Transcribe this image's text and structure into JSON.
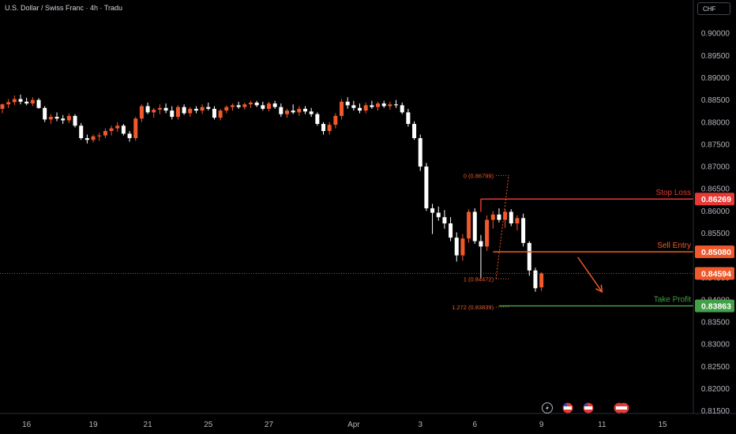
{
  "window": {
    "title": "U.S. Dollar / Swiss Franc · 4h · Tradu",
    "currency_button": "CHF"
  },
  "colors": {
    "up": "#f0592b",
    "down": "#ffffff",
    "stop": "#e53935",
    "entry": "#f0592b",
    "target": "#43a047",
    "fib": "#f0592b",
    "background": "#000000"
  },
  "chart_data": {
    "type": "candlestick",
    "symbol": "USDCHF",
    "interval": "4h",
    "ylim": [
      0.8144,
      0.9075
    ],
    "y_ticks": [
      "0.90000",
      "0.89500",
      "0.89000",
      "0.88500",
      "0.88000",
      "0.87500",
      "0.87000",
      "0.86500",
      "0.86000",
      "0.85500",
      "0.85000",
      "0.84500",
      "0.84000",
      "0.83500",
      "0.83000",
      "0.82500",
      "0.82000",
      "0.81500"
    ],
    "x_ticks": [
      {
        "label": "16",
        "bar": 4
      },
      {
        "label": "19",
        "bar": 15
      },
      {
        "label": "21",
        "bar": 24
      },
      {
        "label": "25",
        "bar": 34
      },
      {
        "label": "27",
        "bar": 44
      },
      {
        "label": "Apr",
        "bar": 58
      },
      {
        "label": "3",
        "bar": 69
      },
      {
        "label": "6",
        "bar": 78
      },
      {
        "label": "9",
        "bar": 89
      },
      {
        "label": "11",
        "bar": 99
      },
      {
        "label": "15",
        "bar": 109
      }
    ],
    "candles": [
      {
        "o": 0.883,
        "h": 0.8842,
        "l": 0.882,
        "c": 0.884
      },
      {
        "o": 0.884,
        "h": 0.8852,
        "l": 0.8832,
        "c": 0.8845
      },
      {
        "o": 0.8845,
        "h": 0.886,
        "l": 0.8838,
        "c": 0.8852
      },
      {
        "o": 0.8852,
        "h": 0.8862,
        "l": 0.884,
        "c": 0.8846
      },
      {
        "o": 0.8846,
        "h": 0.8855,
        "l": 0.8838,
        "c": 0.8842
      },
      {
        "o": 0.8842,
        "h": 0.8856,
        "l": 0.8836,
        "c": 0.885
      },
      {
        "o": 0.885,
        "h": 0.8854,
        "l": 0.883,
        "c": 0.8832
      },
      {
        "o": 0.8832,
        "h": 0.8836,
        "l": 0.88,
        "c": 0.8806
      },
      {
        "o": 0.8806,
        "h": 0.8818,
        "l": 0.8796,
        "c": 0.8812
      },
      {
        "o": 0.8812,
        "h": 0.8822,
        "l": 0.8802,
        "c": 0.8808
      },
      {
        "o": 0.8808,
        "h": 0.8816,
        "l": 0.8796,
        "c": 0.8804
      },
      {
        "o": 0.8804,
        "h": 0.882,
        "l": 0.8798,
        "c": 0.8814
      },
      {
        "o": 0.8814,
        "h": 0.8818,
        "l": 0.8788,
        "c": 0.8792
      },
      {
        "o": 0.8792,
        "h": 0.8798,
        "l": 0.876,
        "c": 0.8764
      },
      {
        "o": 0.8764,
        "h": 0.8772,
        "l": 0.8752,
        "c": 0.876
      },
      {
        "o": 0.876,
        "h": 0.8772,
        "l": 0.8754,
        "c": 0.8768
      },
      {
        "o": 0.8768,
        "h": 0.8776,
        "l": 0.8758,
        "c": 0.877
      },
      {
        "o": 0.877,
        "h": 0.8786,
        "l": 0.8764,
        "c": 0.878
      },
      {
        "o": 0.878,
        "h": 0.8792,
        "l": 0.877,
        "c": 0.8786
      },
      {
        "o": 0.8786,
        "h": 0.88,
        "l": 0.8778,
        "c": 0.8792
      },
      {
        "o": 0.8792,
        "h": 0.8796,
        "l": 0.877,
        "c": 0.8774
      },
      {
        "o": 0.8774,
        "h": 0.878,
        "l": 0.8756,
        "c": 0.8764
      },
      {
        "o": 0.8764,
        "h": 0.8812,
        "l": 0.8758,
        "c": 0.8808
      },
      {
        "o": 0.8808,
        "h": 0.884,
        "l": 0.88,
        "c": 0.8836
      },
      {
        "o": 0.8836,
        "h": 0.8844,
        "l": 0.8818,
        "c": 0.8822
      },
      {
        "o": 0.8822,
        "h": 0.8832,
        "l": 0.881,
        "c": 0.8828
      },
      {
        "o": 0.8828,
        "h": 0.884,
        "l": 0.8818,
        "c": 0.8832
      },
      {
        "o": 0.8832,
        "h": 0.8842,
        "l": 0.882,
        "c": 0.8826
      },
      {
        "o": 0.8826,
        "h": 0.8836,
        "l": 0.8806,
        "c": 0.8812
      },
      {
        "o": 0.8812,
        "h": 0.8838,
        "l": 0.8806,
        "c": 0.8834
      },
      {
        "o": 0.8834,
        "h": 0.884,
        "l": 0.8816,
        "c": 0.882
      },
      {
        "o": 0.882,
        "h": 0.8834,
        "l": 0.8812,
        "c": 0.883
      },
      {
        "o": 0.883,
        "h": 0.8836,
        "l": 0.882,
        "c": 0.8826
      },
      {
        "o": 0.8826,
        "h": 0.884,
        "l": 0.8818,
        "c": 0.8834
      },
      {
        "o": 0.8834,
        "h": 0.8844,
        "l": 0.8826,
        "c": 0.883
      },
      {
        "o": 0.883,
        "h": 0.8836,
        "l": 0.8806,
        "c": 0.881
      },
      {
        "o": 0.881,
        "h": 0.883,
        "l": 0.8804,
        "c": 0.8826
      },
      {
        "o": 0.8826,
        "h": 0.8838,
        "l": 0.882,
        "c": 0.8834
      },
      {
        "o": 0.8834,
        "h": 0.8842,
        "l": 0.8826,
        "c": 0.8838
      },
      {
        "o": 0.8838,
        "h": 0.8846,
        "l": 0.883,
        "c": 0.8834
      },
      {
        "o": 0.8834,
        "h": 0.8844,
        "l": 0.8828,
        "c": 0.884
      },
      {
        "o": 0.884,
        "h": 0.8848,
        "l": 0.8832,
        "c": 0.8844
      },
      {
        "o": 0.8844,
        "h": 0.8848,
        "l": 0.8834,
        "c": 0.8838
      },
      {
        "o": 0.8838,
        "h": 0.8846,
        "l": 0.8826,
        "c": 0.883
      },
      {
        "o": 0.883,
        "h": 0.8846,
        "l": 0.8824,
        "c": 0.8842
      },
      {
        "o": 0.8842,
        "h": 0.8848,
        "l": 0.883,
        "c": 0.8834
      },
      {
        "o": 0.8834,
        "h": 0.8842,
        "l": 0.8812,
        "c": 0.8818
      },
      {
        "o": 0.8818,
        "h": 0.883,
        "l": 0.881,
        "c": 0.8826
      },
      {
        "o": 0.8826,
        "h": 0.884,
        "l": 0.8818,
        "c": 0.8822
      },
      {
        "o": 0.8822,
        "h": 0.8836,
        "l": 0.8814,
        "c": 0.883
      },
      {
        "o": 0.883,
        "h": 0.8836,
        "l": 0.8818,
        "c": 0.8824
      },
      {
        "o": 0.8824,
        "h": 0.8832,
        "l": 0.8812,
        "c": 0.8818
      },
      {
        "o": 0.8818,
        "h": 0.8822,
        "l": 0.8792,
        "c": 0.8796
      },
      {
        "o": 0.8796,
        "h": 0.88,
        "l": 0.8772,
        "c": 0.878
      },
      {
        "o": 0.878,
        "h": 0.88,
        "l": 0.8772,
        "c": 0.8794
      },
      {
        "o": 0.8794,
        "h": 0.882,
        "l": 0.8786,
        "c": 0.8814
      },
      {
        "o": 0.8814,
        "h": 0.8852,
        "l": 0.8806,
        "c": 0.8846
      },
      {
        "o": 0.8846,
        "h": 0.8856,
        "l": 0.883,
        "c": 0.8838
      },
      {
        "o": 0.8838,
        "h": 0.8848,
        "l": 0.8826,
        "c": 0.8832
      },
      {
        "o": 0.8832,
        "h": 0.8842,
        "l": 0.882,
        "c": 0.8826
      },
      {
        "o": 0.8826,
        "h": 0.8844,
        "l": 0.882,
        "c": 0.8838
      },
      {
        "o": 0.8838,
        "h": 0.8848,
        "l": 0.883,
        "c": 0.8834
      },
      {
        "o": 0.8834,
        "h": 0.8846,
        "l": 0.8826,
        "c": 0.8842
      },
      {
        "o": 0.8842,
        "h": 0.8848,
        "l": 0.8832,
        "c": 0.8836
      },
      {
        "o": 0.8836,
        "h": 0.8846,
        "l": 0.8828,
        "c": 0.884
      },
      {
        "o": 0.884,
        "h": 0.885,
        "l": 0.8832,
        "c": 0.8838
      },
      {
        "o": 0.8838,
        "h": 0.8844,
        "l": 0.8818,
        "c": 0.8822
      },
      {
        "o": 0.8822,
        "h": 0.883,
        "l": 0.879,
        "c": 0.8796
      },
      {
        "o": 0.8796,
        "h": 0.8802,
        "l": 0.876,
        "c": 0.8764
      },
      {
        "o": 0.8764,
        "h": 0.8772,
        "l": 0.869,
        "c": 0.87
      },
      {
        "o": 0.87,
        "h": 0.8708,
        "l": 0.86,
        "c": 0.8606
      },
      {
        "o": 0.8606,
        "h": 0.8616,
        "l": 0.8548,
        "c": 0.8596
      },
      {
        "o": 0.8596,
        "h": 0.861,
        "l": 0.8578,
        "c": 0.8586
      },
      {
        "o": 0.8586,
        "h": 0.8602,
        "l": 0.856,
        "c": 0.8572
      },
      {
        "o": 0.8572,
        "h": 0.8586,
        "l": 0.8532,
        "c": 0.854
      },
      {
        "o": 0.854,
        "h": 0.8552,
        "l": 0.8486,
        "c": 0.85
      },
      {
        "o": 0.85,
        "h": 0.8548,
        "l": 0.8488,
        "c": 0.8538
      },
      {
        "o": 0.8538,
        "h": 0.8604,
        "l": 0.8528,
        "c": 0.8598
      },
      {
        "o": 0.8598,
        "h": 0.8606,
        "l": 0.8526,
        "c": 0.8532
      },
      {
        "o": 0.8532,
        "h": 0.8546,
        "l": 0.8447,
        "c": 0.852
      },
      {
        "o": 0.852,
        "h": 0.859,
        "l": 0.851,
        "c": 0.858
      },
      {
        "o": 0.858,
        "h": 0.86,
        "l": 0.856,
        "c": 0.8592
      },
      {
        "o": 0.8592,
        "h": 0.8606,
        "l": 0.8574,
        "c": 0.858
      },
      {
        "o": 0.858,
        "h": 0.8604,
        "l": 0.8562,
        "c": 0.8598
      },
      {
        "o": 0.8598,
        "h": 0.8604,
        "l": 0.8566,
        "c": 0.8572
      },
      {
        "o": 0.8572,
        "h": 0.859,
        "l": 0.8556,
        "c": 0.8584
      },
      {
        "o": 0.8584,
        "h": 0.8594,
        "l": 0.852,
        "c": 0.8528
      },
      {
        "o": 0.8528,
        "h": 0.8532,
        "l": 0.8454,
        "c": 0.8466
      },
      {
        "o": 0.8466,
        "h": 0.8472,
        "l": 0.8418,
        "c": 0.8426
      },
      {
        "o": 0.8428,
        "h": 0.8462,
        "l": 0.842,
        "c": 0.8459
      }
    ],
    "levels": [
      {
        "name": "Stop Loss",
        "price": 0.86269,
        "label": "0.86269",
        "color": "#e53935"
      },
      {
        "name": "Sell Entry",
        "price": 0.8508,
        "label": "0.85080",
        "color": "#f0592b"
      },
      {
        "name": "Take Profit",
        "price": 0.83863,
        "label": "0.83863",
        "color": "#43a047"
      }
    ],
    "last_price": {
      "price": 0.84594,
      "label": "0.84594",
      "color": "#f0592b"
    },
    "fib": [
      {
        "ratio": "0",
        "price": 0.86799,
        "label": "0 (0.86799)"
      },
      {
        "ratio": "1",
        "price": 0.84472,
        "label": "1 (0.84472)"
      },
      {
        "ratio": "1.272",
        "price": 0.83839,
        "label": "1.272 (0.83839)"
      }
    ],
    "projection": {
      "from_bar": 95,
      "from_price": 0.8496,
      "to_bar": 99,
      "to_price": 0.8418
    }
  },
  "event_icons": [
    "lightning-icon",
    "us-flag-icon",
    "us-flag-icon",
    "us-flag-pair-icon"
  ]
}
